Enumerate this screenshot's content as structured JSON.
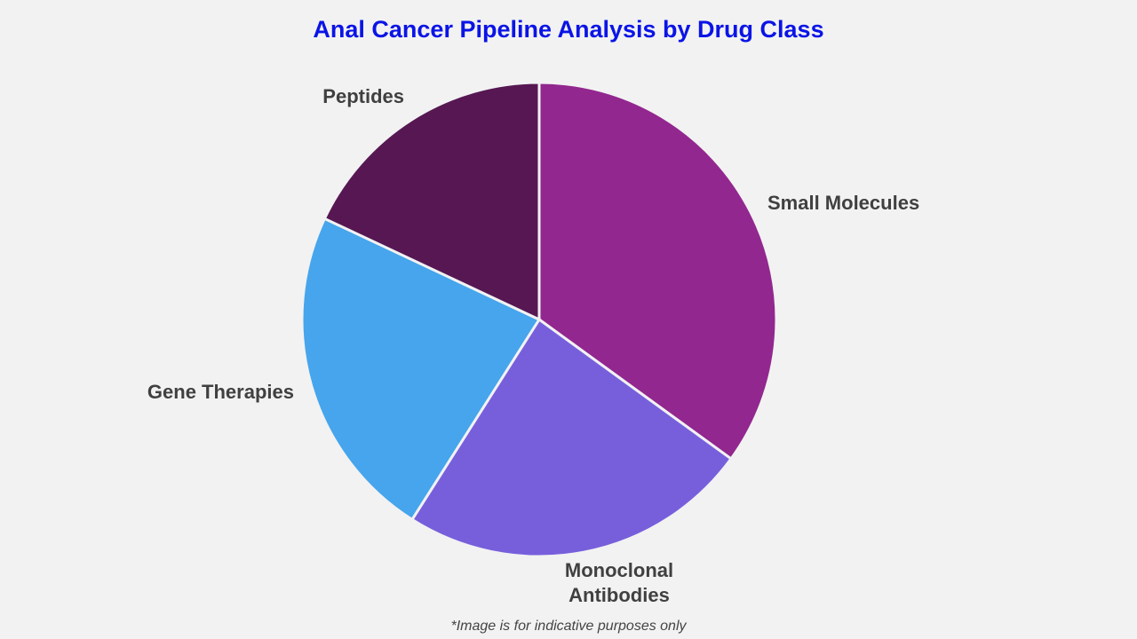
{
  "chart_data": {
    "type": "pie",
    "title": "Anal Cancer Pipeline Analysis by Drug Class",
    "categories": [
      "Small Molecules",
      "Monoclonal Antibodies",
      "Gene Therapies",
      "Peptides"
    ],
    "values": [
      35,
      24,
      23,
      18
    ],
    "colors": [
      "#92278f",
      "#775fdc",
      "#46a5ec",
      "#561753"
    ],
    "start_angle": "top",
    "direction": "clockwise",
    "footnote": "*Image is for indicative purposes only"
  }
}
